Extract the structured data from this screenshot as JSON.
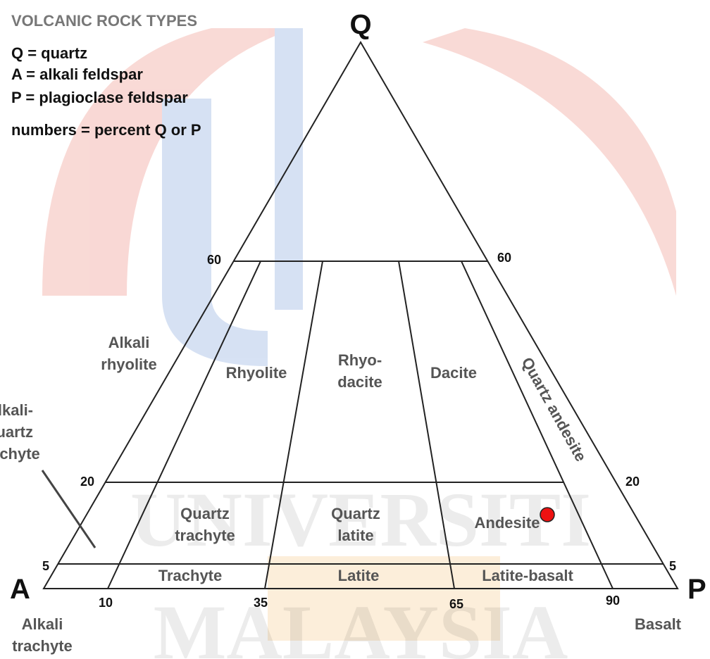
{
  "header": {
    "title": "VOLCANIC ROCK TYPES",
    "legend": [
      "Q = quartz",
      "A = alkali feldspar",
      "P = plagioclase feldspar",
      "numbers = percent Q or P"
    ]
  },
  "watermark": [
    "UNIVERSITI",
    "MALAYSIA"
  ],
  "vertices": {
    "top": "Q",
    "left": "A",
    "right": "P"
  },
  "edge_labels": {
    "left_60": "60",
    "right_60": "60",
    "left_20": "20",
    "right_20": "20",
    "left_5": "5",
    "right_5": "5",
    "bottom": [
      "10",
      "35",
      "65",
      "90"
    ]
  },
  "regions": {
    "alkali_rhyolite": [
      "Alkali",
      "rhyolite"
    ],
    "rhyolite": [
      "Rhyolite"
    ],
    "rhyodacite": [
      "Rhyo-",
      "dacite"
    ],
    "dacite": [
      "Dacite"
    ],
    "quartz_andesite": "Quartz andesite",
    "alkali_quartz_trachyte": [
      "Alkali-",
      "quartz",
      "trachyte"
    ],
    "quartz_trachyte": [
      "Quartz",
      "trachyte"
    ],
    "quartz_latite": [
      "Quartz",
      "latite"
    ],
    "andesite": [
      "Andesite"
    ],
    "trachyte": [
      "Trachyte"
    ],
    "latite": [
      "Latite"
    ],
    "latite_basalt": [
      "Latite-basalt"
    ],
    "alkali_trachyte": [
      "Alkali",
      "trachyte"
    ],
    "basalt": [
      "Basalt"
    ]
  }
}
